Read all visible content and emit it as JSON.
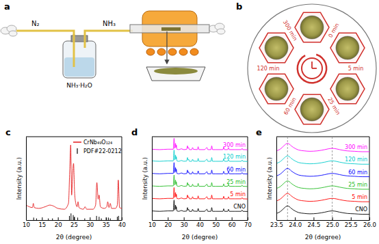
{
  "chart_data": [
    {
      "type": "line",
      "title": "c",
      "x_label": "2θ (degree)",
      "y_label": "Intensity (a.u.)",
      "xlim": [
        10,
        40
      ],
      "ylim": [
        0,
        100
      ],
      "xticks": [
        10,
        15,
        20,
        25,
        30,
        35,
        40
      ],
      "tick_labels": "x",
      "legend": "top-right",
      "series": [
        {
          "name": "CrNb₄₉O₁₂₄",
          "color": "#e41a1c",
          "x": [
            10,
            11,
            12,
            12.3,
            12.6,
            14,
            16,
            17.5,
            18.5,
            20,
            22,
            23.3,
            23.7,
            24.0,
            24.3,
            24.6,
            24.9,
            25.2,
            25.6,
            26,
            26.3,
            26.6,
            28,
            28.5,
            29,
            31,
            31.8,
            32.2,
            32.6,
            32.9,
            33.3,
            34.5,
            35.3,
            35.6,
            36,
            36.4,
            36.8,
            38,
            38.6,
            38.9,
            39.3,
            40
          ],
          "values": [
            18,
            16,
            15,
            20,
            15,
            14,
            16,
            18,
            17,
            14,
            13,
            20,
            60,
            90,
            30,
            55,
            68,
            35,
            20,
            16,
            22,
            15,
            13,
            16,
            13,
            13,
            18,
            45,
            25,
            30,
            16,
            14,
            16,
            22,
            15,
            20,
            14,
            14,
            18,
            48,
            15,
            14
          ]
        },
        {
          "name": "PDF#22-0212",
          "type": "stick",
          "color": "#000000",
          "x": [
            12.4,
            13.3,
            17.0,
            18.3,
            23.6,
            24.1,
            24.8,
            25.2,
            26.2,
            28.4,
            32.1,
            32.9,
            33.6,
            35.2,
            35.8,
            36.4,
            38.6,
            39.0
          ],
          "values": [
            3,
            2,
            2,
            2,
            5,
            8,
            6,
            4,
            3,
            2,
            5,
            4,
            2,
            3,
            3,
            2,
            4,
            5
          ]
        }
      ]
    },
    {
      "type": "line",
      "title": "d",
      "x_label": "2θ (degree)",
      "y_label": "Intensity (a.u.)",
      "xlim": [
        10,
        70
      ],
      "ylim": [
        0,
        100
      ],
      "xticks": [
        10,
        20,
        30,
        40,
        50,
        60,
        70
      ],
      "tick_labels": "x",
      "x": [
        10,
        15,
        20,
        22,
        23.4,
        23.9,
        24.3,
        24.8,
        25.1,
        25.3,
        25.7,
        27,
        28.5,
        30,
        31.8,
        32.3,
        32.7,
        33,
        33.5,
        35,
        35.5,
        36,
        38.5,
        39,
        39.5,
        43,
        44.5,
        45,
        47,
        47.5,
        48,
        50,
        54.5,
        55,
        55.5,
        57.5,
        58,
        58.5,
        62,
        66,
        66.5,
        67,
        70
      ],
      "series": [
        {
          "name": "CNO",
          "color": "#000000",
          "values": [
            11,
            10.5,
            11,
            11,
            11,
            24,
            12,
            18,
            13,
            16,
            11,
            10.5,
            11.5,
            10.5,
            10.8,
            15,
            12,
            13,
            10.5,
            10.5,
            13,
            10.8,
            10.5,
            14,
            10.5,
            10.5,
            13,
            10.5,
            10.5,
            15,
            10.5,
            10.5,
            10.5,
            13.5,
            10.5,
            10.5,
            13,
            10.5,
            10.5,
            10.5,
            12,
            10.5,
            10.3
          ]
        },
        {
          "name": "5 min",
          "color": "#ff0000",
          "values": [
            26,
            25.5,
            26,
            26,
            26,
            39,
            27,
            33,
            28,
            31,
            26,
            25.5,
            26.5,
            25.5,
            25.8,
            30,
            27,
            28,
            25.5,
            25.5,
            28,
            25.8,
            25.5,
            29,
            25.5,
            25.5,
            28,
            25.5,
            25.5,
            30,
            25.5,
            25.5,
            25.5,
            28.5,
            25.5,
            25.5,
            28,
            25.5,
            25.5,
            25.5,
            27,
            25.5,
            25.3
          ]
        },
        {
          "name": "25 min",
          "color": "#22bb22",
          "values": [
            41,
            40.5,
            41,
            41,
            41,
            54,
            42,
            48,
            43,
            46,
            41,
            40.5,
            41.5,
            40.5,
            40.8,
            45,
            42,
            43,
            40.5,
            40.5,
            43,
            40.8,
            40.5,
            44,
            40.5,
            40.5,
            43,
            40.5,
            40.5,
            45,
            40.5,
            40.5,
            40.5,
            43.5,
            40.5,
            40.5,
            43,
            40.5,
            40.5,
            40.5,
            42,
            40.5,
            40.3
          ]
        },
        {
          "name": "60 min",
          "color": "#0000ff",
          "values": [
            56,
            55.5,
            56,
            56,
            56,
            69,
            57,
            63,
            58,
            61,
            56,
            55.5,
            56.5,
            55.5,
            55.8,
            60,
            57,
            58,
            55.5,
            55.5,
            58,
            55.8,
            55.5,
            59,
            55.5,
            55.5,
            58,
            55.5,
            55.5,
            60,
            55.5,
            55.5,
            55.5,
            58.5,
            55.5,
            55.5,
            58,
            55.5,
            55.5,
            55.5,
            57,
            55.5,
            55.3
          ]
        },
        {
          "name": "120 min",
          "color": "#00cccc",
          "values": [
            71,
            70.5,
            71,
            71,
            71,
            84,
            72,
            78,
            73,
            76,
            71,
            70.5,
            71.5,
            70.5,
            70.8,
            75,
            72,
            73,
            70.5,
            70.5,
            73,
            70.8,
            70.5,
            74,
            70.5,
            70.5,
            73,
            70.5,
            70.5,
            75,
            70.5,
            70.5,
            70.5,
            73.5,
            70.5,
            70.5,
            73,
            70.5,
            70.5,
            70.5,
            72,
            70.5,
            70.3
          ]
        },
        {
          "name": "300 min",
          "color": "#ff00ff",
          "values": [
            85,
            84.5,
            85,
            85,
            85,
            98,
            86,
            92,
            87,
            90,
            85,
            84.5,
            85.5,
            84.5,
            84.8,
            89,
            86,
            87,
            84.5,
            84.5,
            87,
            84.8,
            84.5,
            88,
            84.5,
            84.5,
            87,
            84.5,
            84.5,
            89,
            84.5,
            84.5,
            84.5,
            87.5,
            84.5,
            84.5,
            87,
            84.5,
            84.5,
            84.5,
            86,
            84.5,
            84.3
          ]
        }
      ]
    },
    {
      "type": "line",
      "title": "e",
      "x_label": "2θ (degree)",
      "y_label": "Intensity (a.u.)",
      "xlim": [
        23.5,
        26
      ],
      "ylim": [
        0,
        100
      ],
      "xticks": [
        23.5,
        {
          "value": 24,
          "label": "24.0"
        },
        24.5,
        {
          "value": 25,
          "label": "25.0"
        },
        25.5,
        {
          "value": 26,
          "label": "26.0"
        }
      ],
      "tick_labels": "x",
      "vlines": [
        23.8,
        25.0
      ],
      "x": [
        23.5,
        23.6,
        23.7,
        23.75,
        23.8,
        23.85,
        23.9,
        24.0,
        24.1,
        24.25,
        24.4,
        24.6,
        24.8,
        24.9,
        25.0,
        25.1,
        25.2,
        25.4,
        25.6,
        25.8,
        26.0
      ],
      "series": [
        {
          "name": "CNO",
          "color": "#000000",
          "values": [
            8,
            10,
            14,
            16,
            17,
            16,
            14,
            11,
            9,
            8,
            7.5,
            8,
            9.5,
            10.5,
            11,
            10.5,
            9.5,
            8,
            7.5,
            7,
            7
          ]
        },
        {
          "name": "5 min",
          "color": "#ff0000",
          "values": [
            23,
            25,
            29,
            31,
            32,
            31,
            29,
            26,
            24,
            23,
            22.5,
            23,
            24.5,
            25.5,
            26,
            25.5,
            24.5,
            23,
            22.5,
            22,
            22
          ]
        },
        {
          "name": "25 min",
          "color": "#22bb22",
          "values": [
            38,
            40,
            44,
            46,
            47,
            46,
            44,
            41,
            39,
            38,
            37.5,
            38,
            39.5,
            40.5,
            41,
            40.5,
            39.5,
            38,
            37.5,
            37,
            37
          ]
        },
        {
          "name": "60 min",
          "color": "#0000ff",
          "values": [
            53,
            55,
            59,
            61,
            62,
            61,
            59,
            56,
            54,
            53,
            52.5,
            53,
            54.5,
            55.5,
            56,
            55.5,
            54.5,
            53,
            52.5,
            52,
            52
          ]
        },
        {
          "name": "120 min",
          "color": "#00cccc",
          "values": [
            68,
            70,
            74,
            76,
            77,
            76,
            74,
            71,
            69,
            68,
            67.5,
            68,
            69.5,
            70.5,
            71,
            70.5,
            69.5,
            68,
            67.5,
            67,
            67
          ]
        },
        {
          "name": "300 min",
          "color": "#ff00ff",
          "values": [
            83,
            85,
            89,
            91,
            92,
            91,
            89,
            86,
            84,
            83,
            82.5,
            83,
            84.5,
            85.5,
            86,
            85.5,
            84.5,
            83,
            82.5,
            82,
            82
          ]
        }
      ]
    }
  ],
  "diagram": {
    "label_a": "a",
    "carrier_gas": "N₂",
    "reactant_gas": "NH₃",
    "bottle": "NH₃·H₂O",
    "label_b": "b",
    "samples": [
      "0 min",
      "5 min",
      "25 min",
      "60 min",
      "120 min",
      "300 min"
    ]
  }
}
